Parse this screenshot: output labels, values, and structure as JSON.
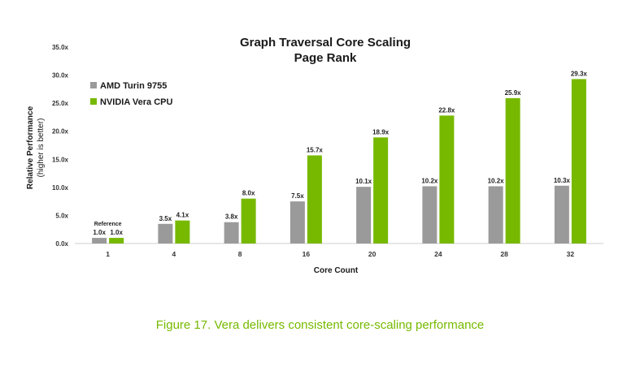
{
  "chart_data": {
    "type": "bar",
    "title": "Graph Traversal Core Scaling",
    "subtitle": "Page Rank",
    "xlabel": "Core Count",
    "ylabel": "Relative Performance",
    "ylabel_sub": "(higher is better)",
    "ylim": [
      0,
      35
    ],
    "y_ticks": [
      "0.0x",
      "5.0x",
      "10.0x",
      "15.0x",
      "20.0x",
      "25.0x",
      "30.0x",
      "35.0x"
    ],
    "y_tick_values": [
      0,
      5,
      10,
      15,
      20,
      25,
      30,
      35
    ],
    "categories": [
      "1",
      "4",
      "8",
      "16",
      "20",
      "24",
      "28",
      "32"
    ],
    "grid": false,
    "legend_position": "top-left",
    "series": [
      {
        "name": "AMD Turin 9755",
        "color": "#9a9a9a",
        "values": [
          1.0,
          3.5,
          3.8,
          7.5,
          10.1,
          10.2,
          10.2,
          10.3
        ],
        "labels": [
          "1.0x",
          "3.5x",
          "3.8x",
          "7.5x",
          "10.1x",
          "10.2x",
          "10.2x",
          "10.3x"
        ]
      },
      {
        "name": "NVIDIA Vera CPU",
        "color": "#76b900",
        "values": [
          1.0,
          4.1,
          8.0,
          15.7,
          18.9,
          22.8,
          25.9,
          29.3
        ],
        "labels": [
          "1.0x",
          "4.1x",
          "8.0x",
          "15.7x",
          "18.9x",
          "22.8x",
          "25.9x",
          "29.3x"
        ]
      }
    ],
    "annotations": [
      {
        "text": "Reference",
        "category": "1"
      }
    ]
  },
  "caption": "Figure 17. Vera delivers consistent core-scaling performance"
}
